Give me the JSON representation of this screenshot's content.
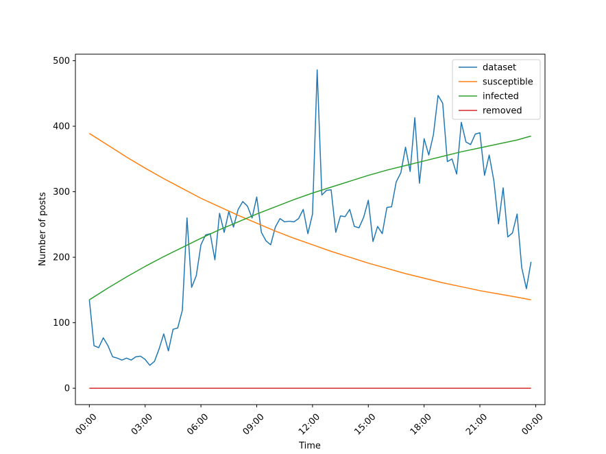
{
  "chart_data": {
    "type": "line",
    "xlabel": "Time",
    "ylabel": "Number of posts",
    "xlim": [
      -0.75,
      24.5
    ],
    "ylim": [
      -25,
      510
    ],
    "x_ticks": [
      0,
      3,
      6,
      9,
      12,
      15,
      18,
      21,
      24
    ],
    "x_tick_labels": [
      "00:00",
      "03:00",
      "06:00",
      "09:00",
      "12:00",
      "15:00",
      "18:00",
      "21:00",
      "00:00"
    ],
    "y_ticks": [
      0,
      100,
      200,
      300,
      400,
      500
    ],
    "y_tick_labels": [
      "0",
      "100",
      "200",
      "300",
      "400",
      "500"
    ],
    "grid": false,
    "legend_position": "top-right",
    "series": [
      {
        "name": "dataset",
        "color": "#1f77b4",
        "x": [
          0.0,
          0.25,
          0.5,
          0.75,
          1.0,
          1.25,
          1.5,
          1.75,
          2.0,
          2.25,
          2.5,
          2.75,
          3.0,
          3.25,
          3.5,
          3.75,
          4.0,
          4.25,
          4.5,
          4.75,
          5.0,
          5.25,
          5.5,
          5.75,
          6.0,
          6.25,
          6.5,
          6.75,
          7.0,
          7.25,
          7.5,
          7.75,
          8.0,
          8.25,
          8.5,
          8.75,
          9.0,
          9.25,
          9.5,
          9.75,
          10.0,
          10.25,
          10.5,
          10.75,
          11.0,
          11.25,
          11.5,
          11.75,
          12.0,
          12.25,
          12.5,
          12.75,
          13.0,
          13.25,
          13.5,
          13.75,
          14.0,
          14.25,
          14.5,
          14.75,
          15.0,
          15.25,
          15.5,
          15.75,
          16.0,
          16.25,
          16.5,
          16.75,
          17.0,
          17.25,
          17.5,
          17.75,
          18.0,
          18.25,
          18.5,
          18.75,
          19.0,
          19.25,
          19.5,
          19.75,
          20.0,
          20.25,
          20.5,
          20.75,
          21.0,
          21.25,
          21.5,
          21.75,
          22.0,
          22.25,
          22.5,
          22.75,
          23.0,
          23.25,
          23.5,
          23.75
        ],
        "values": [
          135,
          65,
          62,
          77,
          65,
          48,
          46,
          43,
          46,
          43,
          48,
          49,
          44,
          35,
          41,
          60,
          83,
          57,
          90,
          92,
          119,
          260,
          154,
          172,
          219,
          234,
          236,
          196,
          267,
          238,
          270,
          246,
          273,
          285,
          278,
          260,
          292,
          238,
          225,
          219,
          246,
          259,
          254,
          255,
          254,
          259,
          273,
          236,
          266,
          486,
          295,
          302,
          303,
          238,
          263,
          262,
          273,
          247,
          245,
          261,
          287,
          224,
          247,
          236,
          276,
          277,
          315,
          329,
          368,
          331,
          413,
          313,
          381,
          356,
          387,
          447,
          435,
          346,
          350,
          327,
          406,
          376,
          372,
          388,
          390,
          325,
          356,
          317,
          251,
          306,
          231,
          237,
          266,
          184,
          152,
          193
        ]
      },
      {
        "name": "susceptible",
        "color": "#ff7f0e",
        "x": [
          0,
          1,
          2,
          3,
          4,
          5,
          6,
          7,
          8,
          9,
          10,
          11,
          12,
          13,
          14,
          15,
          16,
          17,
          18,
          19,
          20,
          21,
          22,
          23,
          23.75
        ],
        "values": [
          389,
          371,
          353,
          336,
          320,
          305,
          290,
          277,
          264,
          252,
          240,
          229,
          219,
          209,
          200,
          191,
          183,
          175,
          168,
          161,
          155,
          149,
          144,
          139,
          135
        ]
      },
      {
        "name": "infected",
        "color": "#2ca02c",
        "x": [
          0,
          1,
          2,
          3,
          4,
          5,
          6,
          7,
          8,
          9,
          10,
          11,
          12,
          13,
          14,
          15,
          16,
          17,
          18,
          19,
          20,
          21,
          22,
          23,
          23.75
        ],
        "values": [
          135,
          153,
          170,
          186,
          201,
          215,
          229,
          242,
          254,
          266,
          277,
          288,
          298,
          307,
          316,
          325,
          333,
          340,
          347,
          354,
          361,
          367,
          373,
          379,
          385
        ]
      },
      {
        "name": "removed",
        "color": "#d62728",
        "x": [
          0,
          23.75
        ],
        "values": [
          0,
          0
        ]
      }
    ]
  }
}
